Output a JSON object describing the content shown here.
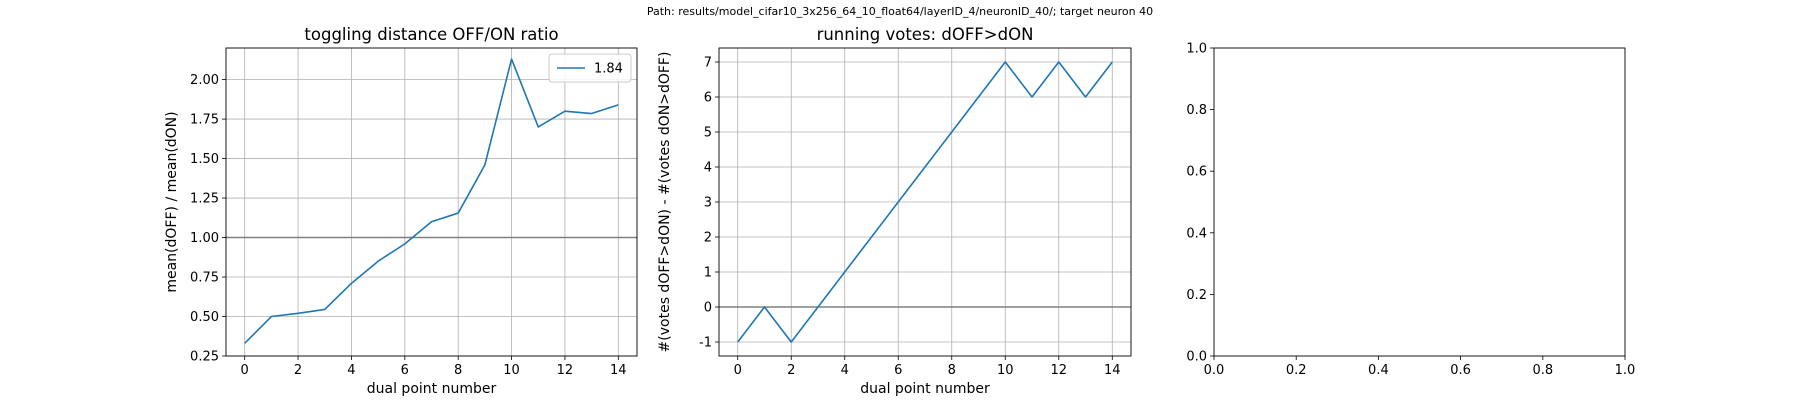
{
  "suptitle": "Path: results/model_cifar10_3x256_64_10_float64/layerID_4/neuronID_40/; target neuron 40",
  "chart_data": [
    {
      "type": "line",
      "title": "toggling distance OFF/ON ratio",
      "xlabel": "dual point number",
      "ylabel": "mean(dOFF) / mean(dON)",
      "xlim": [
        -0.7,
        14.7
      ],
      "ylim": [
        0.25,
        2.2
      ],
      "xticks": [
        0,
        2,
        4,
        6,
        8,
        10,
        12,
        14
      ],
      "yticks": [
        0.25,
        0.5,
        0.75,
        1.0,
        1.25,
        1.5,
        1.75,
        2.0
      ],
      "ytick_labels": [
        "0.25",
        "0.50",
        "0.75",
        "1.00",
        "1.25",
        "1.50",
        "1.75",
        "2.00"
      ],
      "grid": true,
      "hline": 1.0,
      "legend": {
        "position": "top-right",
        "entries": [
          "1.84"
        ]
      },
      "series": [
        {
          "name": "1.84",
          "color": "#1f77b4",
          "x": [
            0,
            1,
            2,
            3,
            4,
            5,
            6,
            7,
            8,
            9,
            10,
            11,
            12,
            13,
            14
          ],
          "y": [
            0.33,
            0.5,
            0.52,
            0.545,
            0.71,
            0.85,
            0.96,
            1.1,
            1.155,
            1.46,
            2.13,
            1.7,
            1.8,
            1.785,
            1.84
          ]
        }
      ]
    },
    {
      "type": "line",
      "title": "running votes: dOFF>dON",
      "xlabel": "dual point number",
      "ylabel": "#(votes dOFF>dON) - #(votes dON>dOFF)",
      "xlim": [
        -0.7,
        14.7
      ],
      "ylim": [
        -1.4,
        7.4
      ],
      "xticks": [
        0,
        2,
        4,
        6,
        8,
        10,
        12,
        14
      ],
      "yticks": [
        -1,
        0,
        1,
        2,
        3,
        4,
        5,
        6,
        7
      ],
      "ytick_labels": [
        "-1",
        "0",
        "1",
        "2",
        "3",
        "4",
        "5",
        "6",
        "7"
      ],
      "grid": true,
      "hline": 0,
      "series": [
        {
          "color": "#1f77b4",
          "x": [
            0,
            1,
            2,
            3,
            4,
            5,
            6,
            7,
            8,
            9,
            10,
            11,
            12,
            13,
            14
          ],
          "y": [
            -1,
            0,
            -1,
            0,
            1,
            2,
            3,
            4,
            5,
            6,
            7,
            6,
            7,
            6,
            7
          ]
        }
      ]
    },
    {
      "type": "line",
      "title": "",
      "xlim": [
        0,
        1
      ],
      "ylim": [
        0,
        1
      ],
      "xticks": [
        0.0,
        0.2,
        0.4,
        0.6,
        0.8,
        1.0
      ],
      "xtick_labels": [
        "0.0",
        "0.2",
        "0.4",
        "0.6",
        "0.8",
        "1.0"
      ],
      "yticks": [
        0.0,
        0.2,
        0.4,
        0.6,
        0.8,
        1.0
      ],
      "ytick_labels": [
        "0.0",
        "0.2",
        "0.4",
        "0.6",
        "0.8",
        "1.0"
      ],
      "grid": false,
      "series": []
    }
  ]
}
